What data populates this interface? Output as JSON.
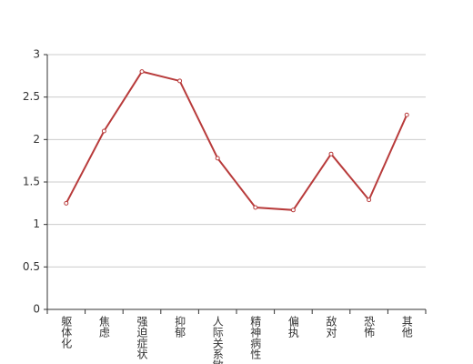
{
  "chart_data": {
    "type": "line",
    "categories": [
      "躯体化",
      "焦虑",
      "强迫症状",
      "抑郁",
      "人际关系敏感",
      "精神病性",
      "偏执",
      "敌对",
      "恐怖",
      "其他"
    ],
    "values": [
      1.25,
      2.1,
      2.8,
      2.69,
      1.78,
      1.2,
      1.17,
      1.83,
      1.29,
      2.29
    ],
    "color": "#b83b3b",
    "ylim": [
      0,
      3
    ],
    "yticks": [
      0,
      0.5,
      1,
      1.5,
      2,
      2.5,
      3
    ],
    "grid": true
  }
}
